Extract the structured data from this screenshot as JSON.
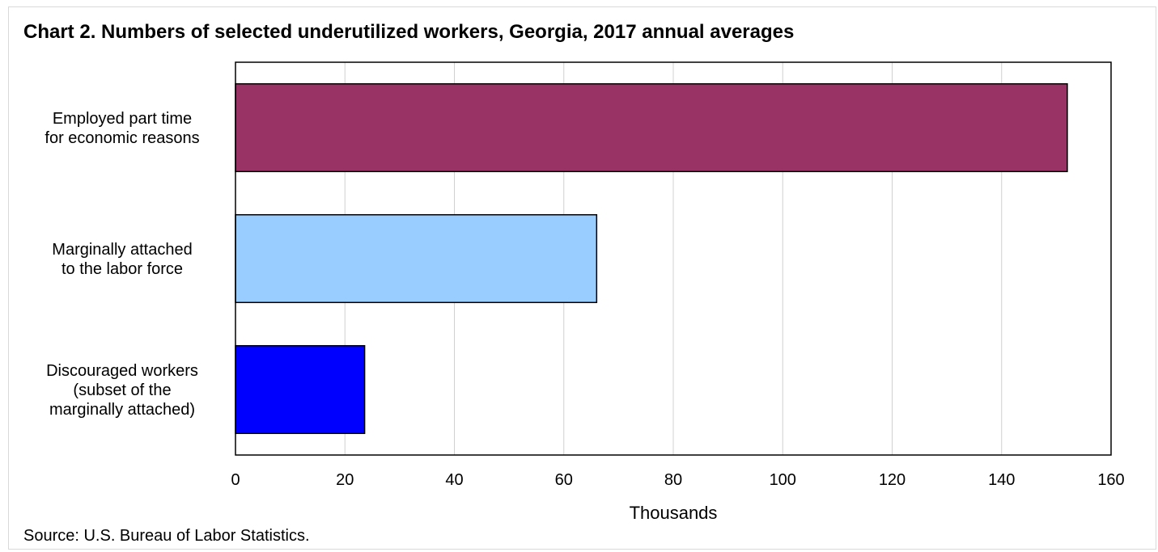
{
  "chart_data": {
    "type": "bar",
    "orientation": "horizontal",
    "title": "Chart 2. Numbers of selected underutilized workers, Georgia, 2017 annual averages",
    "categories": [
      [
        "Employed part time",
        "for economic reasons"
      ],
      [
        "Marginally attached",
        "to the labor force"
      ],
      [
        "Discouraged workers",
        "(subset of the",
        "marginally attached)"
      ]
    ],
    "values": [
      152,
      66,
      23.6
    ],
    "colors": [
      "#993366",
      "#99ccff",
      "#0000ff"
    ],
    "xlabel": "Thousands",
    "ylabel": "",
    "xlim": [
      0,
      160
    ],
    "xticks": [
      "0",
      "20",
      "40",
      "60",
      "80",
      "100",
      "120",
      "140",
      "160"
    ],
    "grid": "vertical",
    "legend": "none",
    "source": "Source: U.S. Bureau of Labor Statistics."
  }
}
